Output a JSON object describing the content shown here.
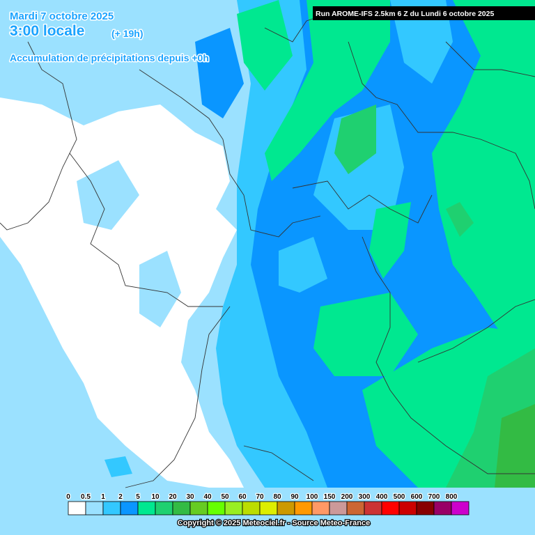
{
  "header": {
    "date": "Mardi 7 octobre 2025",
    "time": "3:00 locale",
    "offset": "(+ 19h)",
    "subtitle": "Accumulation de précipitations depuis +0h",
    "run": "Run AROME-IFS 2.5km 6 Z du Lundi 6 octobre 2025"
  },
  "legend": {
    "items": [
      {
        "label": "0",
        "color": "#ffffff"
      },
      {
        "label": "0.5",
        "color": "#9be1ff"
      },
      {
        "label": "1",
        "color": "#33c8ff"
      },
      {
        "label": "2",
        "color": "#0a96ff"
      },
      {
        "label": "5",
        "color": "#00e890"
      },
      {
        "label": "10",
        "color": "#1fd070"
      },
      {
        "label": "20",
        "color": "#33bb44"
      },
      {
        "label": "30",
        "color": "#66cc22"
      },
      {
        "label": "40",
        "color": "#66ff00"
      },
      {
        "label": "50",
        "color": "#99ee22"
      },
      {
        "label": "60",
        "color": "#bbdd00"
      },
      {
        "label": "70",
        "color": "#ddee00"
      },
      {
        "label": "80",
        "color": "#cc9900"
      },
      {
        "label": "90",
        "color": "#ff9900"
      },
      {
        "label": "100",
        "color": "#ff9966"
      },
      {
        "label": "150",
        "color": "#cc9999"
      },
      {
        "label": "200",
        "color": "#cc6633"
      },
      {
        "label": "300",
        "color": "#cc3333"
      },
      {
        "label": "400",
        "color": "#ff0000"
      },
      {
        "label": "500",
        "color": "#cc0000"
      },
      {
        "label": "600",
        "color": "#880000"
      },
      {
        "label": "700",
        "color": "#990066"
      },
      {
        "label": "800",
        "color": "#cc00cc"
      }
    ]
  },
  "footer": {
    "copyright": "Copyright © 2025 Meteociel.fr - Source Meteo-France"
  }
}
